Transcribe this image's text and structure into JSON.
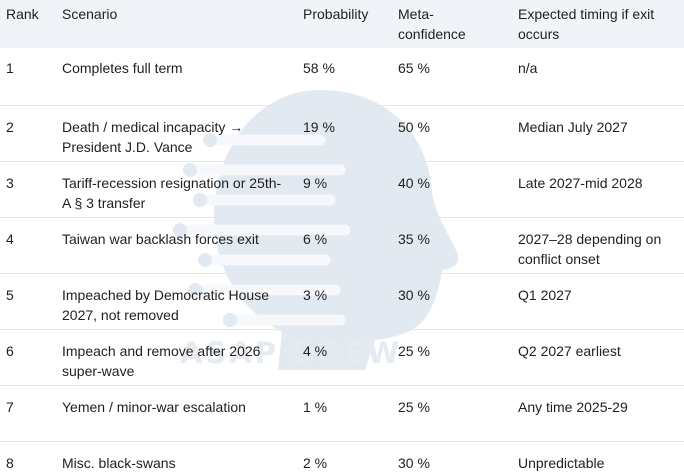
{
  "table": {
    "headers": {
      "rank": "Rank",
      "scenario": "Scenario",
      "probability": "Probability",
      "meta_confidence": "Meta-confidence",
      "timing": "Expected timing if exit occurs"
    },
    "rows": [
      {
        "rank": "1",
        "scenario": "Completes full term",
        "probability": "58 %",
        "meta_confidence": "65 %",
        "timing": "n/a"
      },
      {
        "rank": "2",
        "scenario": "Death / medical incapacity → President J.D. Vance",
        "probability": "19 %",
        "meta_confidence": "50 %",
        "timing": "Median July 2027"
      },
      {
        "rank": "3",
        "scenario": "Tariff-recession resignation or 25th-A § 3 transfer",
        "probability": "9 %",
        "meta_confidence": "40 %",
        "timing": "Late 2027-mid 2028"
      },
      {
        "rank": "4",
        "scenario": "Taiwan war backlash forces exit",
        "probability": "6 %",
        "meta_confidence": "35 %",
        "timing": "2027–28 depending on conflict onset"
      },
      {
        "rank": "5",
        "scenario": "Impeached by Democratic House 2027, not removed",
        "probability": "3 %",
        "meta_confidence": "30 %",
        "timing": "Q1 2027"
      },
      {
        "rank": "6",
        "scenario": "Impeach and remove after 2026 super-wave",
        "probability": "4 %",
        "meta_confidence": "25 %",
        "timing": "Q2 2027 earliest"
      },
      {
        "rank": "7",
        "scenario": "Yemen / minor-war escalation",
        "probability": "1 %",
        "meta_confidence": "25 %",
        "timing": "Any time 2025-29"
      },
      {
        "rank": "8",
        "scenario": "Misc. black-swans",
        "probability": "2 %",
        "meta_confidence": "30 %",
        "timing": "Unpredictable"
      }
    ]
  },
  "watermark": {
    "text": "ASAP DREW"
  }
}
